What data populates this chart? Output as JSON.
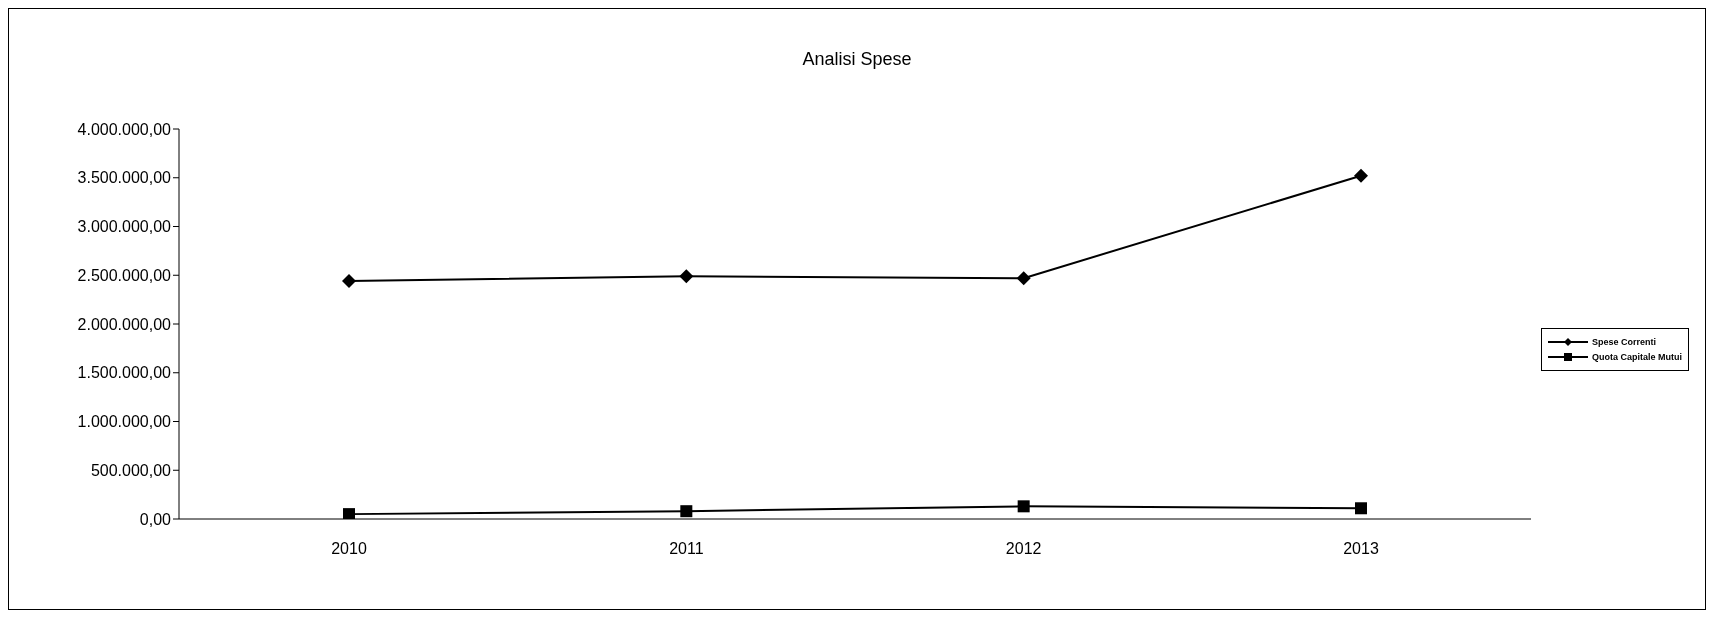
{
  "chart_data": {
    "type": "line",
    "title": "Analisi Spese",
    "categories": [
      "2010",
      "2011",
      "2012",
      "2013"
    ],
    "series": [
      {
        "name": "Spese Correnti",
        "color": "#000000",
        "marker": "diamond",
        "values": [
          2440000,
          2490000,
          2470000,
          3520000
        ]
      },
      {
        "name": "Quota Capitale Mutui",
        "color": "#000000",
        "marker": "square",
        "values": [
          50000,
          80000,
          130000,
          110000
        ]
      }
    ],
    "ylim": [
      0,
      4000000
    ],
    "yticks": [
      {
        "value": 0,
        "label": "0,00"
      },
      {
        "value": 500000,
        "label": "500.000,00"
      },
      {
        "value": 1000000,
        "label": "1.000.000,00"
      },
      {
        "value": 1500000,
        "label": "1.500.000,00"
      },
      {
        "value": 2000000,
        "label": "2.000.000,00"
      },
      {
        "value": 2500000,
        "label": "2.500.000,00"
      },
      {
        "value": 3000000,
        "label": "3.000.000,00"
      },
      {
        "value": 3500000,
        "label": "3.500.000,00"
      },
      {
        "value": 4000000,
        "label": "4.000.000,00"
      }
    ],
    "grid": false,
    "legend": "right",
    "line_style": "solid"
  }
}
